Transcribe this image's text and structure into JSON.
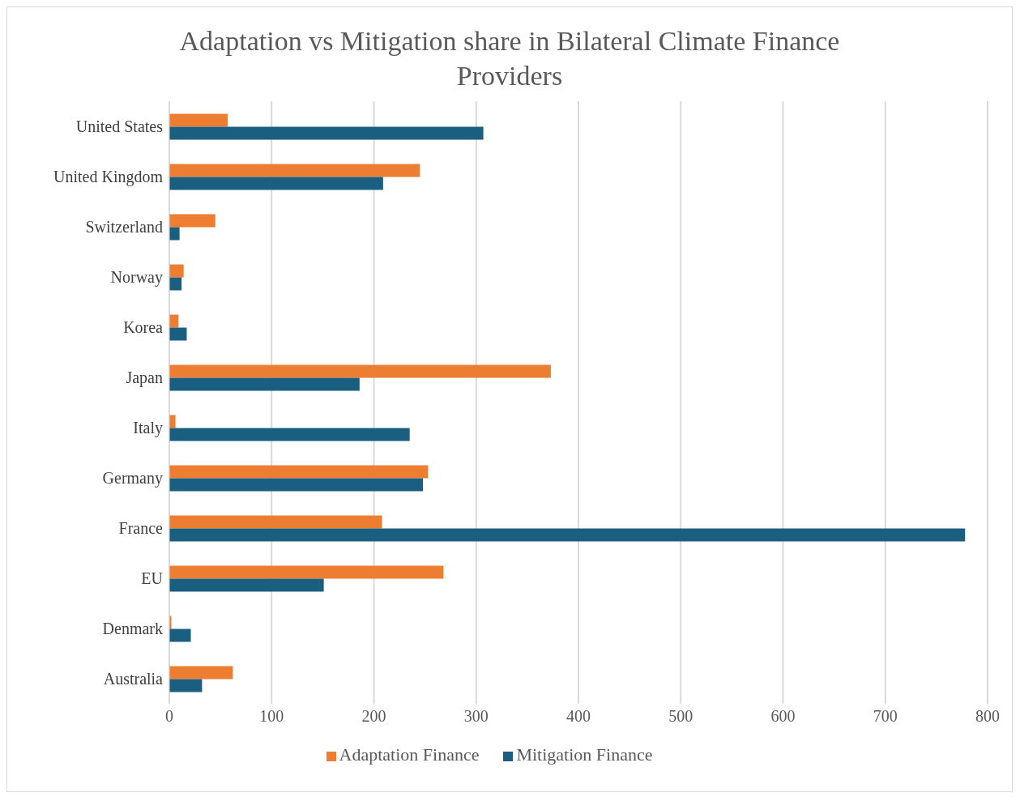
{
  "chart_data": {
    "type": "bar",
    "orientation": "horizontal",
    "title": "Adaptation vs Mitigation share in Bilateral Climate Finance Providers",
    "categories": [
      "United States",
      "United Kingdom",
      "Switzerland",
      "Norway",
      "Korea",
      "Japan",
      "Italy",
      "Germany",
      "France",
      "EU",
      "Denmark",
      "Australia"
    ],
    "series": [
      {
        "name": "Adaptation Finance",
        "color": "#ed7d31",
        "values": [
          57,
          245,
          45,
          14,
          9,
          373,
          6,
          253,
          208,
          268,
          2,
          62
        ]
      },
      {
        "name": "Mitigation Finance",
        "color": "#1a5e80",
        "values": [
          307,
          209,
          10,
          12,
          17,
          186,
          235,
          248,
          778,
          151,
          21,
          32
        ]
      }
    ],
    "xlim": [
      0,
      800
    ],
    "xticks": [
      0,
      100,
      200,
      300,
      400,
      500,
      600,
      700,
      800
    ],
    "grid": "x",
    "legend": "bottom"
  }
}
